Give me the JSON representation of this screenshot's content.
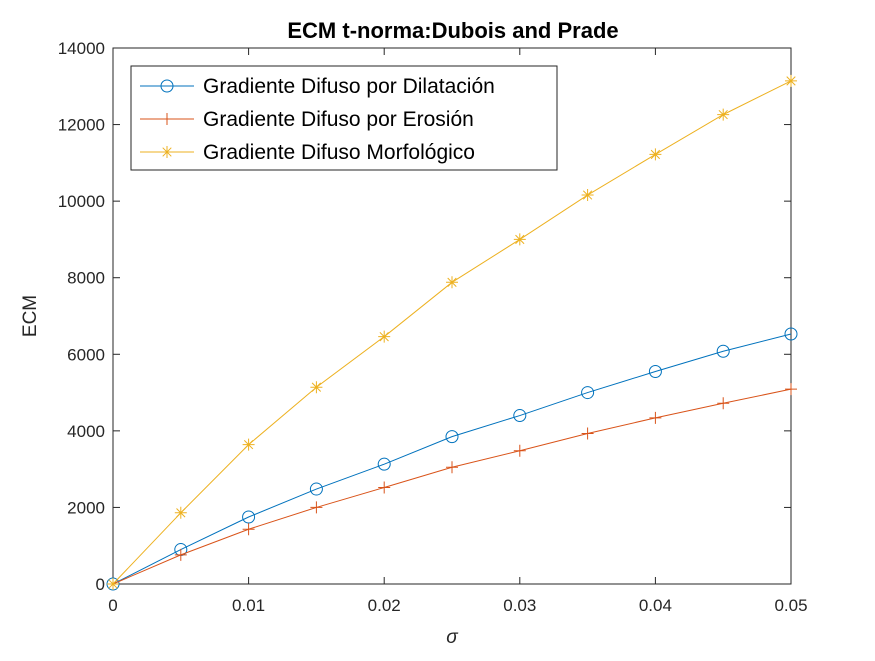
{
  "chart_data": {
    "type": "line",
    "title": "ECM t-norma:Dubois and Prade",
    "xlabel": "σ",
    "ylabel": "ECM",
    "xlim": [
      0,
      0.05
    ],
    "ylim": [
      0,
      14000
    ],
    "x_ticks": [
      0,
      0.01,
      0.02,
      0.03,
      0.04,
      0.05
    ],
    "x_tick_labels": [
      "0",
      "0.01",
      "0.02",
      "0.03",
      "0.04",
      "0.05"
    ],
    "y_ticks": [
      0,
      2000,
      4000,
      6000,
      8000,
      10000,
      12000,
      14000
    ],
    "y_tick_labels": [
      "0",
      "2000",
      "4000",
      "6000",
      "8000",
      "10000",
      "12000",
      "14000"
    ],
    "x": [
      0,
      0.005,
      0.01,
      0.015,
      0.02,
      0.025,
      0.03,
      0.035,
      0.04,
      0.045,
      0.05
    ],
    "grid": false,
    "legend_position": "top-left",
    "series": [
      {
        "name": "Gradiente Difuso por Dilatación",
        "color": "#0072BD",
        "marker": "circle",
        "values": [
          0,
          900,
          1750,
          2480,
          3130,
          3850,
          4400,
          5000,
          5550,
          6080,
          6530
        ]
      },
      {
        "name": "Gradiente Difuso por Erosión",
        "color": "#D95319",
        "marker": "plus",
        "values": [
          0,
          760,
          1430,
          2000,
          2520,
          3050,
          3480,
          3930,
          4340,
          4720,
          5090
        ]
      },
      {
        "name": "Gradiente Difuso Morfológico",
        "color": "#EDB120",
        "marker": "asterisk",
        "values": [
          0,
          1860,
          3640,
          5140,
          6460,
          7880,
          9000,
          10160,
          11220,
          12260,
          13140
        ]
      }
    ]
  }
}
